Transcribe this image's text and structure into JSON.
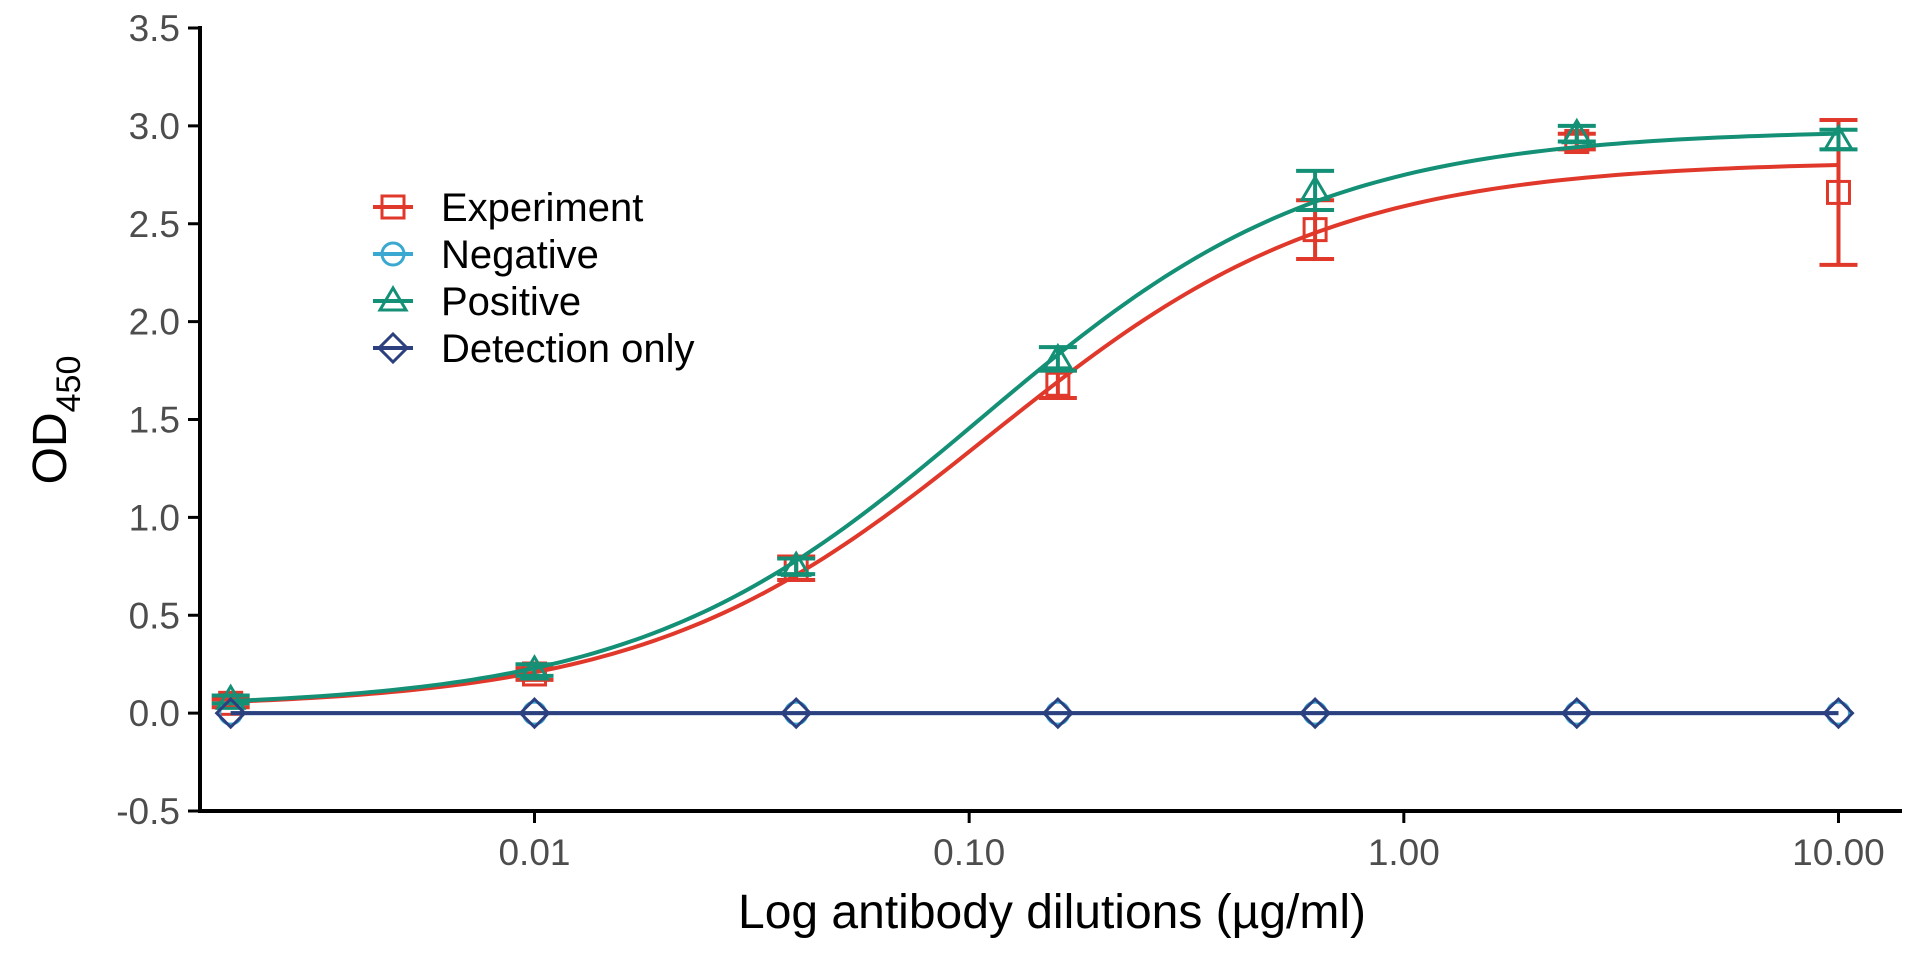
{
  "chart_data": {
    "type": "line",
    "title": "",
    "xlabel": "Log antibody dilutions (µg/ml)",
    "ylabel_main": "OD",
    "ylabel_sub": "450",
    "x_scale": "log10",
    "xlim": [
      0.0017,
      14
    ],
    "ylim": [
      -0.5,
      3.5
    ],
    "x_ticks": [
      0.01,
      0.1,
      1,
      10
    ],
    "x_tick_labels": [
      "0.01",
      "0.10",
      "1.00",
      "10.00"
    ],
    "y_ticks": [
      -0.5,
      0.0,
      0.5,
      1.0,
      1.5,
      2.0,
      2.5,
      3.0,
      3.5
    ],
    "y_tick_labels": [
      "-0.5",
      "0.0",
      "0.5",
      "1.0",
      "1.5",
      "2.0",
      "2.5",
      "3.0",
      "3.5"
    ],
    "grid": false,
    "legend_position": "top-left",
    "x": [
      0.002,
      0.01,
      0.04,
      0.16,
      0.625,
      2.5,
      10
    ],
    "series": [
      {
        "name": "Experiment",
        "color": "#E0392B",
        "marker": "square",
        "values": [
          0.05,
          0.2,
          0.74,
          1.68,
          2.47,
          2.92,
          2.66
        ],
        "errors": [
          0.02,
          0.03,
          0.06,
          0.07,
          0.15,
          0.04,
          0.37
        ],
        "fit": {
          "bottom": 0.025,
          "top": 2.82,
          "ec50": 0.112,
          "hill": 1.1
        }
      },
      {
        "name": "Negative",
        "color": "#3AA8D0",
        "marker": "circle",
        "values": [
          0.0,
          0.0,
          0.0,
          0.0,
          0.0,
          0.0,
          0.0
        ],
        "errors": [
          0.0,
          0.0,
          0.0,
          0.0,
          0.0,
          0.0,
          0.0
        ],
        "fit": null
      },
      {
        "name": "Positive",
        "color": "#139075",
        "marker": "triangle",
        "values": [
          0.07,
          0.22,
          0.75,
          1.81,
          2.67,
          2.96,
          2.93
        ],
        "errors": [
          0.02,
          0.03,
          0.04,
          0.06,
          0.1,
          0.04,
          0.05
        ],
        "fit": {
          "bottom": 0.025,
          "top": 2.98,
          "ec50": 0.106,
          "hill": 1.1
        }
      },
      {
        "name": "Detection only",
        "color": "#2C3F7F",
        "marker": "diamond",
        "values": [
          0.0,
          0.0,
          0.0,
          0.0,
          0.0,
          0.0,
          0.0
        ],
        "errors": [
          0.0,
          0.0,
          0.0,
          0.0,
          0.0,
          0.0,
          0.0
        ],
        "fit": null
      }
    ]
  }
}
